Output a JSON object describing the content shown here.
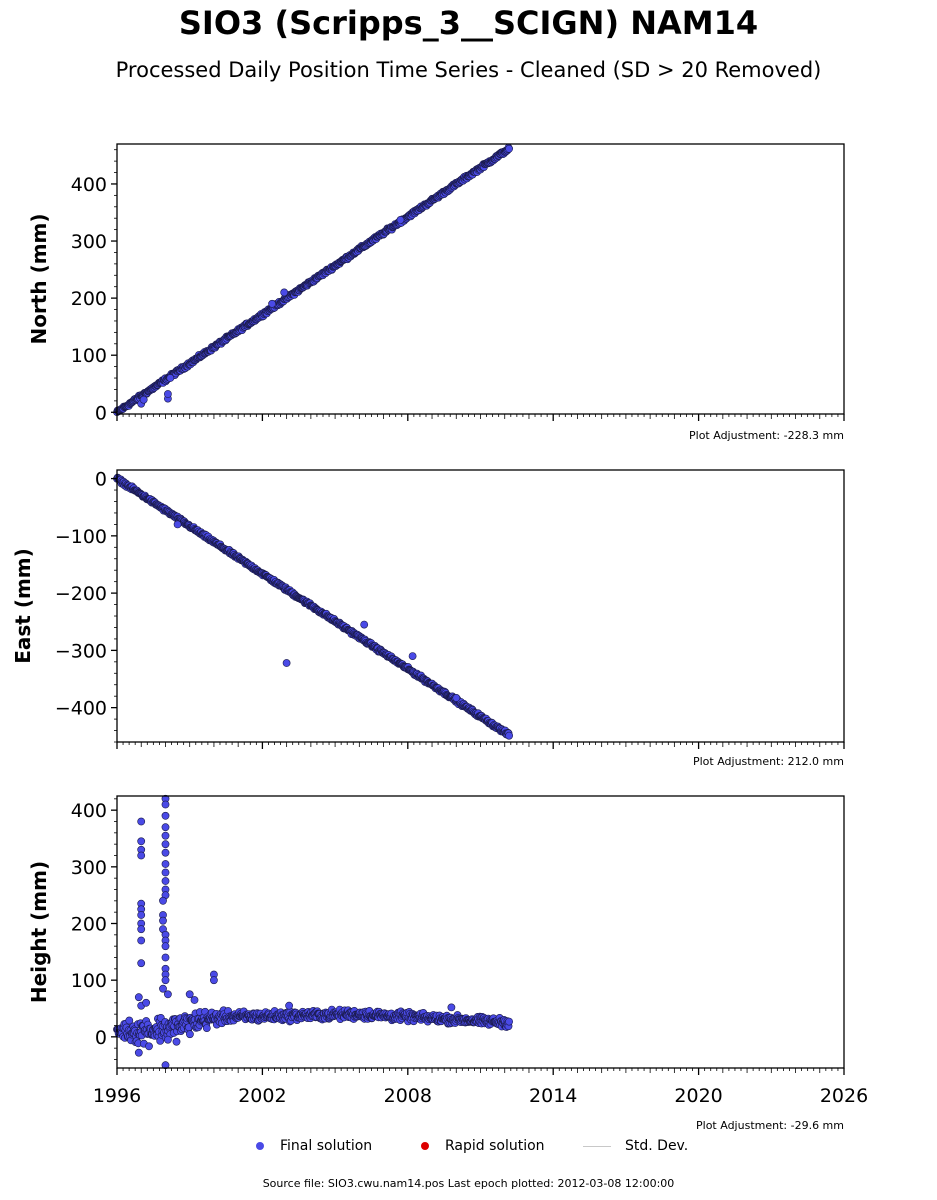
{
  "title": "SIO3 (Scripps_3__SCIGN) NAM14",
  "subtitle": "Processed Daily Position Time Series - Cleaned (SD > 20 Removed)",
  "colors": {
    "final": "#4a4ae6",
    "final_edge": "#1a1a4a",
    "rapid": "#dd0000",
    "stddev": "#c8c8c8"
  },
  "chart_data": [
    {
      "type": "scatter",
      "ylabel": "North (mm)",
      "xlim": [
        1996,
        2026
      ],
      "ylim": [
        -3,
        470
      ],
      "yticks": [
        0,
        100,
        200,
        300,
        400
      ],
      "adjustment": "Plot Adjustment: -228.3 mm",
      "trend": {
        "x": [
          1996.0,
          2012.18
        ],
        "y": [
          0,
          462
        ]
      },
      "noise": 2.5,
      "outliers": [
        {
          "x": 1997.0,
          "y": 15
        },
        {
          "x": 1997.1,
          "y": 22
        },
        {
          "x": 1998.1,
          "y": 24
        },
        {
          "x": 1998.1,
          "y": 32
        },
        {
          "x": 1998.2,
          "y": 60
        },
        {
          "x": 2002.9,
          "y": 210
        },
        {
          "x": 2002.4,
          "y": 190
        },
        {
          "x": 2007.7,
          "y": 337
        }
      ]
    },
    {
      "type": "scatter",
      "ylabel": "East (mm)",
      "xlim": [
        1996,
        2026
      ],
      "ylim": [
        -460,
        15
      ],
      "yticks": [
        0,
        -100,
        -200,
        -300,
        -400
      ],
      "ytick_labels": [
        "0",
        "−100",
        "−200",
        "−300",
        "−400"
      ],
      "adjustment": "Plot Adjustment: 212.0 mm",
      "trend": {
        "x": [
          1996.0,
          2012.18
        ],
        "y": [
          0,
          -448
        ]
      },
      "noise": 2.5,
      "outliers": [
        {
          "x": 2003.0,
          "y": -322
        },
        {
          "x": 1998.5,
          "y": -80
        },
        {
          "x": 2006.2,
          "y": -255
        },
        {
          "x": 2010.0,
          "y": -383
        },
        {
          "x": 2008.2,
          "y": -310
        }
      ]
    },
    {
      "type": "scatter",
      "ylabel": "Height (mm)",
      "xlim": [
        1996,
        2026
      ],
      "ylim": [
        -55,
        425
      ],
      "yticks": [
        0,
        100,
        200,
        300,
        400
      ],
      "xticks": [
        1996,
        2002,
        2008,
        2014,
        2020,
        2026
      ],
      "adjustment": "Plot Adjustment: -29.6 mm",
      "outliers": [
        {
          "x": 1997.0,
          "y": 380
        },
        {
          "x": 1997.0,
          "y": 345
        },
        {
          "x": 1997.0,
          "y": 330
        },
        {
          "x": 1997.0,
          "y": 320
        },
        {
          "x": 1997.0,
          "y": 235
        },
        {
          "x": 1997.0,
          "y": 225
        },
        {
          "x": 1997.0,
          "y": 215
        },
        {
          "x": 1997.0,
          "y": 200
        },
        {
          "x": 1997.0,
          "y": 190
        },
        {
          "x": 1997.0,
          "y": 170
        },
        {
          "x": 1997.0,
          "y": 130
        },
        {
          "x": 1996.9,
          "y": 70
        },
        {
          "x": 1997.0,
          "y": 55
        },
        {
          "x": 1998.0,
          "y": 420
        },
        {
          "x": 1998.0,
          "y": 410
        },
        {
          "x": 1998.0,
          "y": 390
        },
        {
          "x": 1998.0,
          "y": 370
        },
        {
          "x": 1998.0,
          "y": 355
        },
        {
          "x": 1998.0,
          "y": 340
        },
        {
          "x": 1998.0,
          "y": 325
        },
        {
          "x": 1998.0,
          "y": 305
        },
        {
          "x": 1998.0,
          "y": 290
        },
        {
          "x": 1998.0,
          "y": 275
        },
        {
          "x": 1998.0,
          "y": 260
        },
        {
          "x": 1998.0,
          "y": 250
        },
        {
          "x": 1997.9,
          "y": 240
        },
        {
          "x": 1997.9,
          "y": 215
        },
        {
          "x": 1997.9,
          "y": 205
        },
        {
          "x": 1997.9,
          "y": 190
        },
        {
          "x": 1998.0,
          "y": 180
        },
        {
          "x": 1998.0,
          "y": 170
        },
        {
          "x": 1998.0,
          "y": 160
        },
        {
          "x": 1998.0,
          "y": 140
        },
        {
          "x": 1998.0,
          "y": 120
        },
        {
          "x": 1998.0,
          "y": 110
        },
        {
          "x": 1998.0,
          "y": 100
        },
        {
          "x": 1997.9,
          "y": 85
        },
        {
          "x": 1998.1,
          "y": 75
        },
        {
          "x": 1998.0,
          "y": -50
        },
        {
          "x": 2000.0,
          "y": 110
        },
        {
          "x": 2000.0,
          "y": 100
        },
        {
          "x": 1999.0,
          "y": 75
        },
        {
          "x": 1999.2,
          "y": 65
        },
        {
          "x": 1997.2,
          "y": 60
        },
        {
          "x": 1996.9,
          "y": -28
        },
        {
          "x": 1998.1,
          "y": -5
        },
        {
          "x": 2009.8,
          "y": 52
        },
        {
          "x": 2003.1,
          "y": 55
        }
      ],
      "band": [
        {
          "x": 1996.0,
          "y": 12,
          "s": 10
        },
        {
          "x": 1997.0,
          "y": 10,
          "s": 20
        },
        {
          "x": 1998.5,
          "y": 18,
          "s": 18
        },
        {
          "x": 1999.5,
          "y": 30,
          "s": 14
        },
        {
          "x": 2000.5,
          "y": 35,
          "s": 8
        },
        {
          "x": 2003.0,
          "y": 37,
          "s": 7
        },
        {
          "x": 2006.0,
          "y": 40,
          "s": 7
        },
        {
          "x": 2009.0,
          "y": 33,
          "s": 6
        },
        {
          "x": 2012.18,
          "y": 25,
          "s": 6
        }
      ]
    }
  ],
  "legend": {
    "final": "Final solution",
    "rapid": "Rapid solution",
    "stddev": "Std. Dev."
  },
  "source": "Source file: SIO3.cwu.nam14.pos  Last epoch plotted: 2012-03-08 12:00:00"
}
